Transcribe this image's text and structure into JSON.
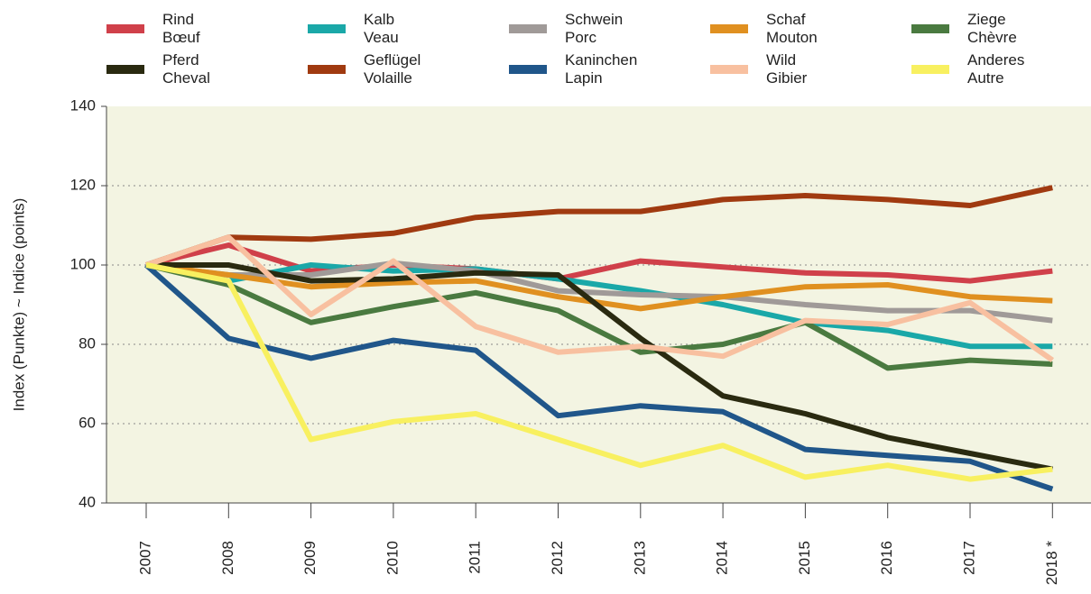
{
  "chart_data": {
    "type": "line",
    "y_label": "Index (Punkte)   ~   Indice (points)",
    "categories": [
      "2007",
      "2008",
      "2009",
      "2010",
      "2011",
      "2012",
      "2013",
      "2014",
      "2015",
      "2016",
      "2017",
      "2018 *"
    ],
    "ylim": [
      40,
      140
    ],
    "yticks": [
      40,
      60,
      80,
      100,
      120,
      140
    ],
    "grid": true,
    "series": [
      {
        "name": "Rind\nBœuf",
        "color": "#d0404a",
        "values": [
          100,
          105,
          98.5,
          100,
          99,
          96.5,
          101,
          99.5,
          98,
          97.5,
          96,
          98.5
        ]
      },
      {
        "name": "Kalb\nVeau",
        "color": "#1aa8a8",
        "values": [
          100,
          96,
          100,
          98.5,
          99,
          96.5,
          93.5,
          90,
          85.5,
          83.5,
          79.5,
          79.5
        ]
      },
      {
        "name": "Schwein\nPorc",
        "color": "#a09a98",
        "values": [
          100,
          97.5,
          97.5,
          100.5,
          98.5,
          93.5,
          92.5,
          92,
          90,
          88.5,
          88.5,
          86
        ]
      },
      {
        "name": "Schaf\nMouton",
        "color": "#e09020",
        "values": [
          100,
          97.5,
          94.5,
          95.5,
          96,
          92,
          89,
          92,
          94.5,
          95,
          92,
          91
        ]
      },
      {
        "name": "Ziege\nChèvre",
        "color": "#4a7a40",
        "values": [
          100,
          95,
          85.5,
          89.5,
          93,
          88.5,
          78,
          80,
          85.5,
          74,
          76,
          75
        ]
      },
      {
        "name": "Pferd\nCheval",
        "color": "#2a2a10",
        "values": [
          100,
          100,
          96,
          96.5,
          98,
          97.5,
          81.5,
          67,
          62.5,
          56.5,
          52.5,
          48.5
        ]
      },
      {
        "name": "Geflügel\nVolaille",
        "color": "#a03a10",
        "values": [
          100,
          107,
          106.5,
          108,
          112,
          113.5,
          113.5,
          116.5,
          117.5,
          116.5,
          115,
          119.5
        ]
      },
      {
        "name": "Kaninchen\nLapin",
        "color": "#20568a",
        "values": [
          100,
          81.5,
          76.5,
          81,
          78.5,
          62,
          64.5,
          63,
          53.5,
          52,
          50.5,
          43.5
        ]
      },
      {
        "name": "Wild\nGibier",
        "color": "#f8c0a0",
        "values": [
          100,
          107,
          87.5,
          101,
          84.5,
          78,
          79.5,
          77,
          86,
          85,
          90.5,
          76
        ]
      },
      {
        "name": "Anderes\nAutre",
        "color": "#f8f060",
        "values": [
          100,
          96,
          56,
          60.5,
          62.5,
          56,
          49.5,
          54.5,
          46.5,
          49.5,
          46,
          48.5
        ]
      }
    ]
  }
}
